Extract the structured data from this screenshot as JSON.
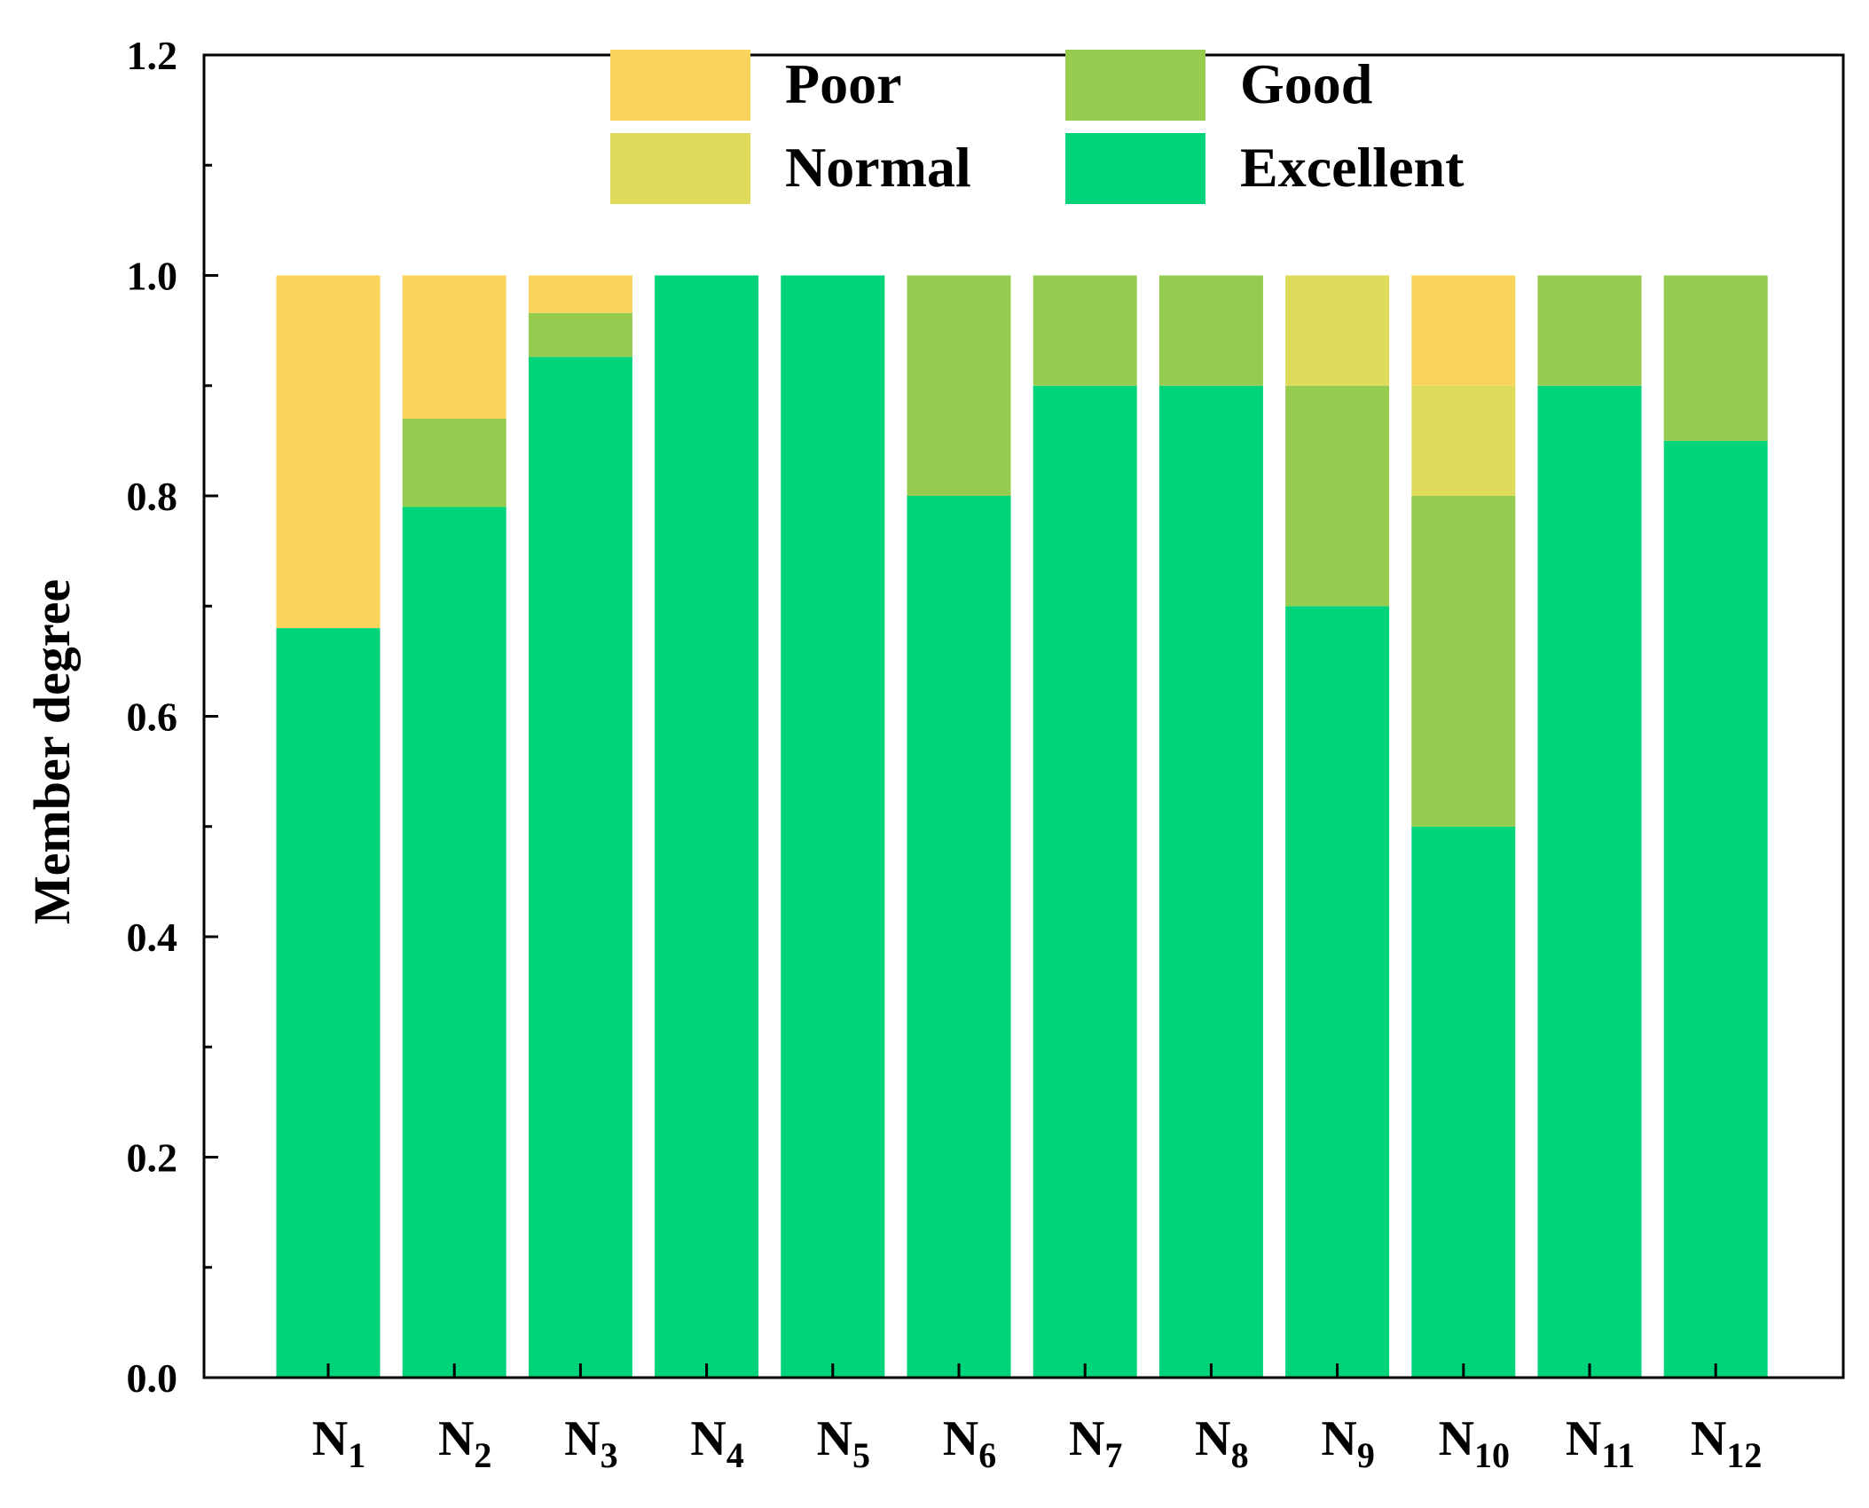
{
  "chart_data": {
    "type": "bar",
    "stacked": true,
    "ylabel": "Member degree",
    "xlabel": "",
    "ylim": [
      0,
      1.2
    ],
    "y_ticks": [
      "0.0",
      "0.2",
      "0.4",
      "0.6",
      "0.8",
      "1.0",
      "1.2"
    ],
    "y_tick_values": [
      0.0,
      0.2,
      0.4,
      0.6,
      0.8,
      1.0,
      1.2
    ],
    "categories": [
      {
        "base": "N",
        "sub": "1"
      },
      {
        "base": "N",
        "sub": "2"
      },
      {
        "base": "N",
        "sub": "3"
      },
      {
        "base": "N",
        "sub": "4"
      },
      {
        "base": "N",
        "sub": "5"
      },
      {
        "base": "N",
        "sub": "6"
      },
      {
        "base": "N",
        "sub": "7"
      },
      {
        "base": "N",
        "sub": "8"
      },
      {
        "base": "N",
        "sub": "9"
      },
      {
        "base": "N",
        "sub": "10"
      },
      {
        "base": "N",
        "sub": "11"
      },
      {
        "base": "N",
        "sub": "12"
      }
    ],
    "series": [
      {
        "name": "Excellent",
        "color": "#00d47a",
        "values": [
          0.68,
          0.79,
          0.926,
          1.0,
          1.0,
          0.8,
          0.9,
          0.9,
          0.7,
          0.5,
          0.9,
          0.85
        ]
      },
      {
        "name": "Good",
        "color": "#95cb4e",
        "values": [
          0.0,
          0.08,
          0.04,
          0.0,
          0.0,
          0.2,
          0.1,
          0.1,
          0.2,
          0.3,
          0.1,
          0.15
        ]
      },
      {
        "name": "Normal",
        "color": "#dedb5a",
        "values": [
          0.0,
          0.0,
          0.0,
          0.0,
          0.0,
          0.0,
          0.0,
          0.0,
          0.1,
          0.1,
          0.0,
          0.0
        ]
      },
      {
        "name": "Poor",
        "color": "#f9d45c",
        "values": [
          0.32,
          0.13,
          0.034,
          0.0,
          0.0,
          0.0,
          0.0,
          0.0,
          0.0,
          0.1,
          0.0,
          0.0
        ]
      }
    ],
    "legend": {
      "placement": "top-center",
      "order": [
        "Poor",
        "Good",
        "Normal",
        "Excellent"
      ]
    },
    "grid": false
  }
}
